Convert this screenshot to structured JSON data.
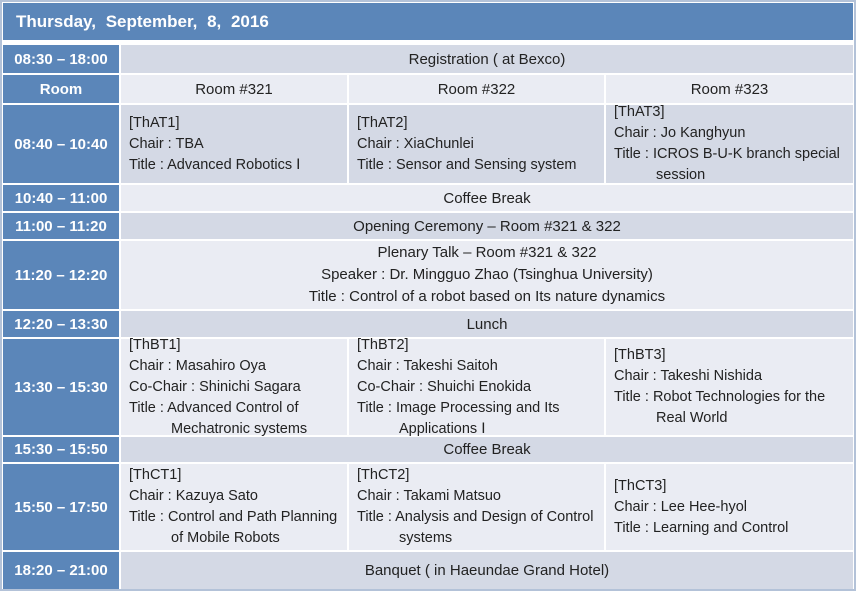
{
  "title": "Thursday, September, 8, 2016",
  "colors": {
    "header_blue": "#5B86B9",
    "row_dark": "#D4D9E5",
    "row_light": "#EAECF3",
    "border": "#B3C2D8",
    "time_text": "#FFFFFF",
    "body_text": "#222222"
  },
  "room_header": {
    "label": "Room",
    "rooms": [
      "Room #321",
      "Room #322",
      "Room #323"
    ]
  },
  "registration": {
    "time": "08:30 – 18:00",
    "label": "Registration ( at Bexco)"
  },
  "session_a": {
    "time": "08:40 – 10:40",
    "cells": [
      {
        "code": "[ThAT1]",
        "chair": "Chair : TBA",
        "title": "Title : Advanced Robotics Ⅰ"
      },
      {
        "code": "[ThAT2]",
        "chair": "Chair : XiaChunlei",
        "title": "Title : Sensor and Sensing system"
      },
      {
        "code": "[ThAT3]",
        "chair": "Chair : Jo Kanghyun",
        "title": "Title : ICROS B-U-K branch special",
        "title2": "session"
      }
    ]
  },
  "coffee1": {
    "time": "10:40 – 11:00",
    "label": "Coffee Break"
  },
  "opening": {
    "time": "11:00 – 11:20",
    "label": "Opening Ceremony – Room #321 & 322"
  },
  "plenary": {
    "time": "11:20 – 12:20",
    "line1": "Plenary Talk – Room #321 & 322",
    "line2": "Speaker : Dr. Mingguo Zhao (Tsinghua University)",
    "line3": "Title : Control of a robot based on Its nature dynamics"
  },
  "lunch": {
    "time": "12:20 – 13:30",
    "label": "Lunch"
  },
  "session_b": {
    "time": "13:30 – 15:30",
    "cells": [
      {
        "code": "[ThBT1]",
        "chair": "Chair : Masahiro Oya",
        "cochair": "Co-Chair : Shinichi Sagara",
        "title": "Title : Advanced Control of",
        "title2": "Mechatronic systems"
      },
      {
        "code": "[ThBT2]",
        "chair": "Chair : Takeshi Saitoh",
        "cochair": "Co-Chair : Shuichi Enokida",
        "title": "Title : Image Processing and Its",
        "title2": "Applications Ⅰ"
      },
      {
        "code": "[ThBT3]",
        "chair": "Chair : Takeshi Nishida",
        "title": "Title : Robot Technologies for the",
        "title2": "Real World"
      }
    ]
  },
  "coffee2": {
    "time": "15:30 – 15:50",
    "label": "Coffee Break"
  },
  "session_c": {
    "time": "15:50 – 17:50",
    "cells": [
      {
        "code": "[ThCT1]",
        "chair": "Chair : Kazuya Sato",
        "title": "Title : Control and Path Planning",
        "title2": "of Mobile Robots"
      },
      {
        "code": "[ThCT2]",
        "chair": "Chair : Takami Matsuo",
        "title": "Title : Analysis and Design of Control",
        "title2": "systems"
      },
      {
        "code": "[ThCT3]",
        "chair": "Chair : Lee Hee-hyol",
        "title": "Title : Learning and Control"
      }
    ]
  },
  "banquet": {
    "time": "18:20 – 21:00",
    "label": "Banquet ( in Haeundae Grand Hotel)"
  }
}
